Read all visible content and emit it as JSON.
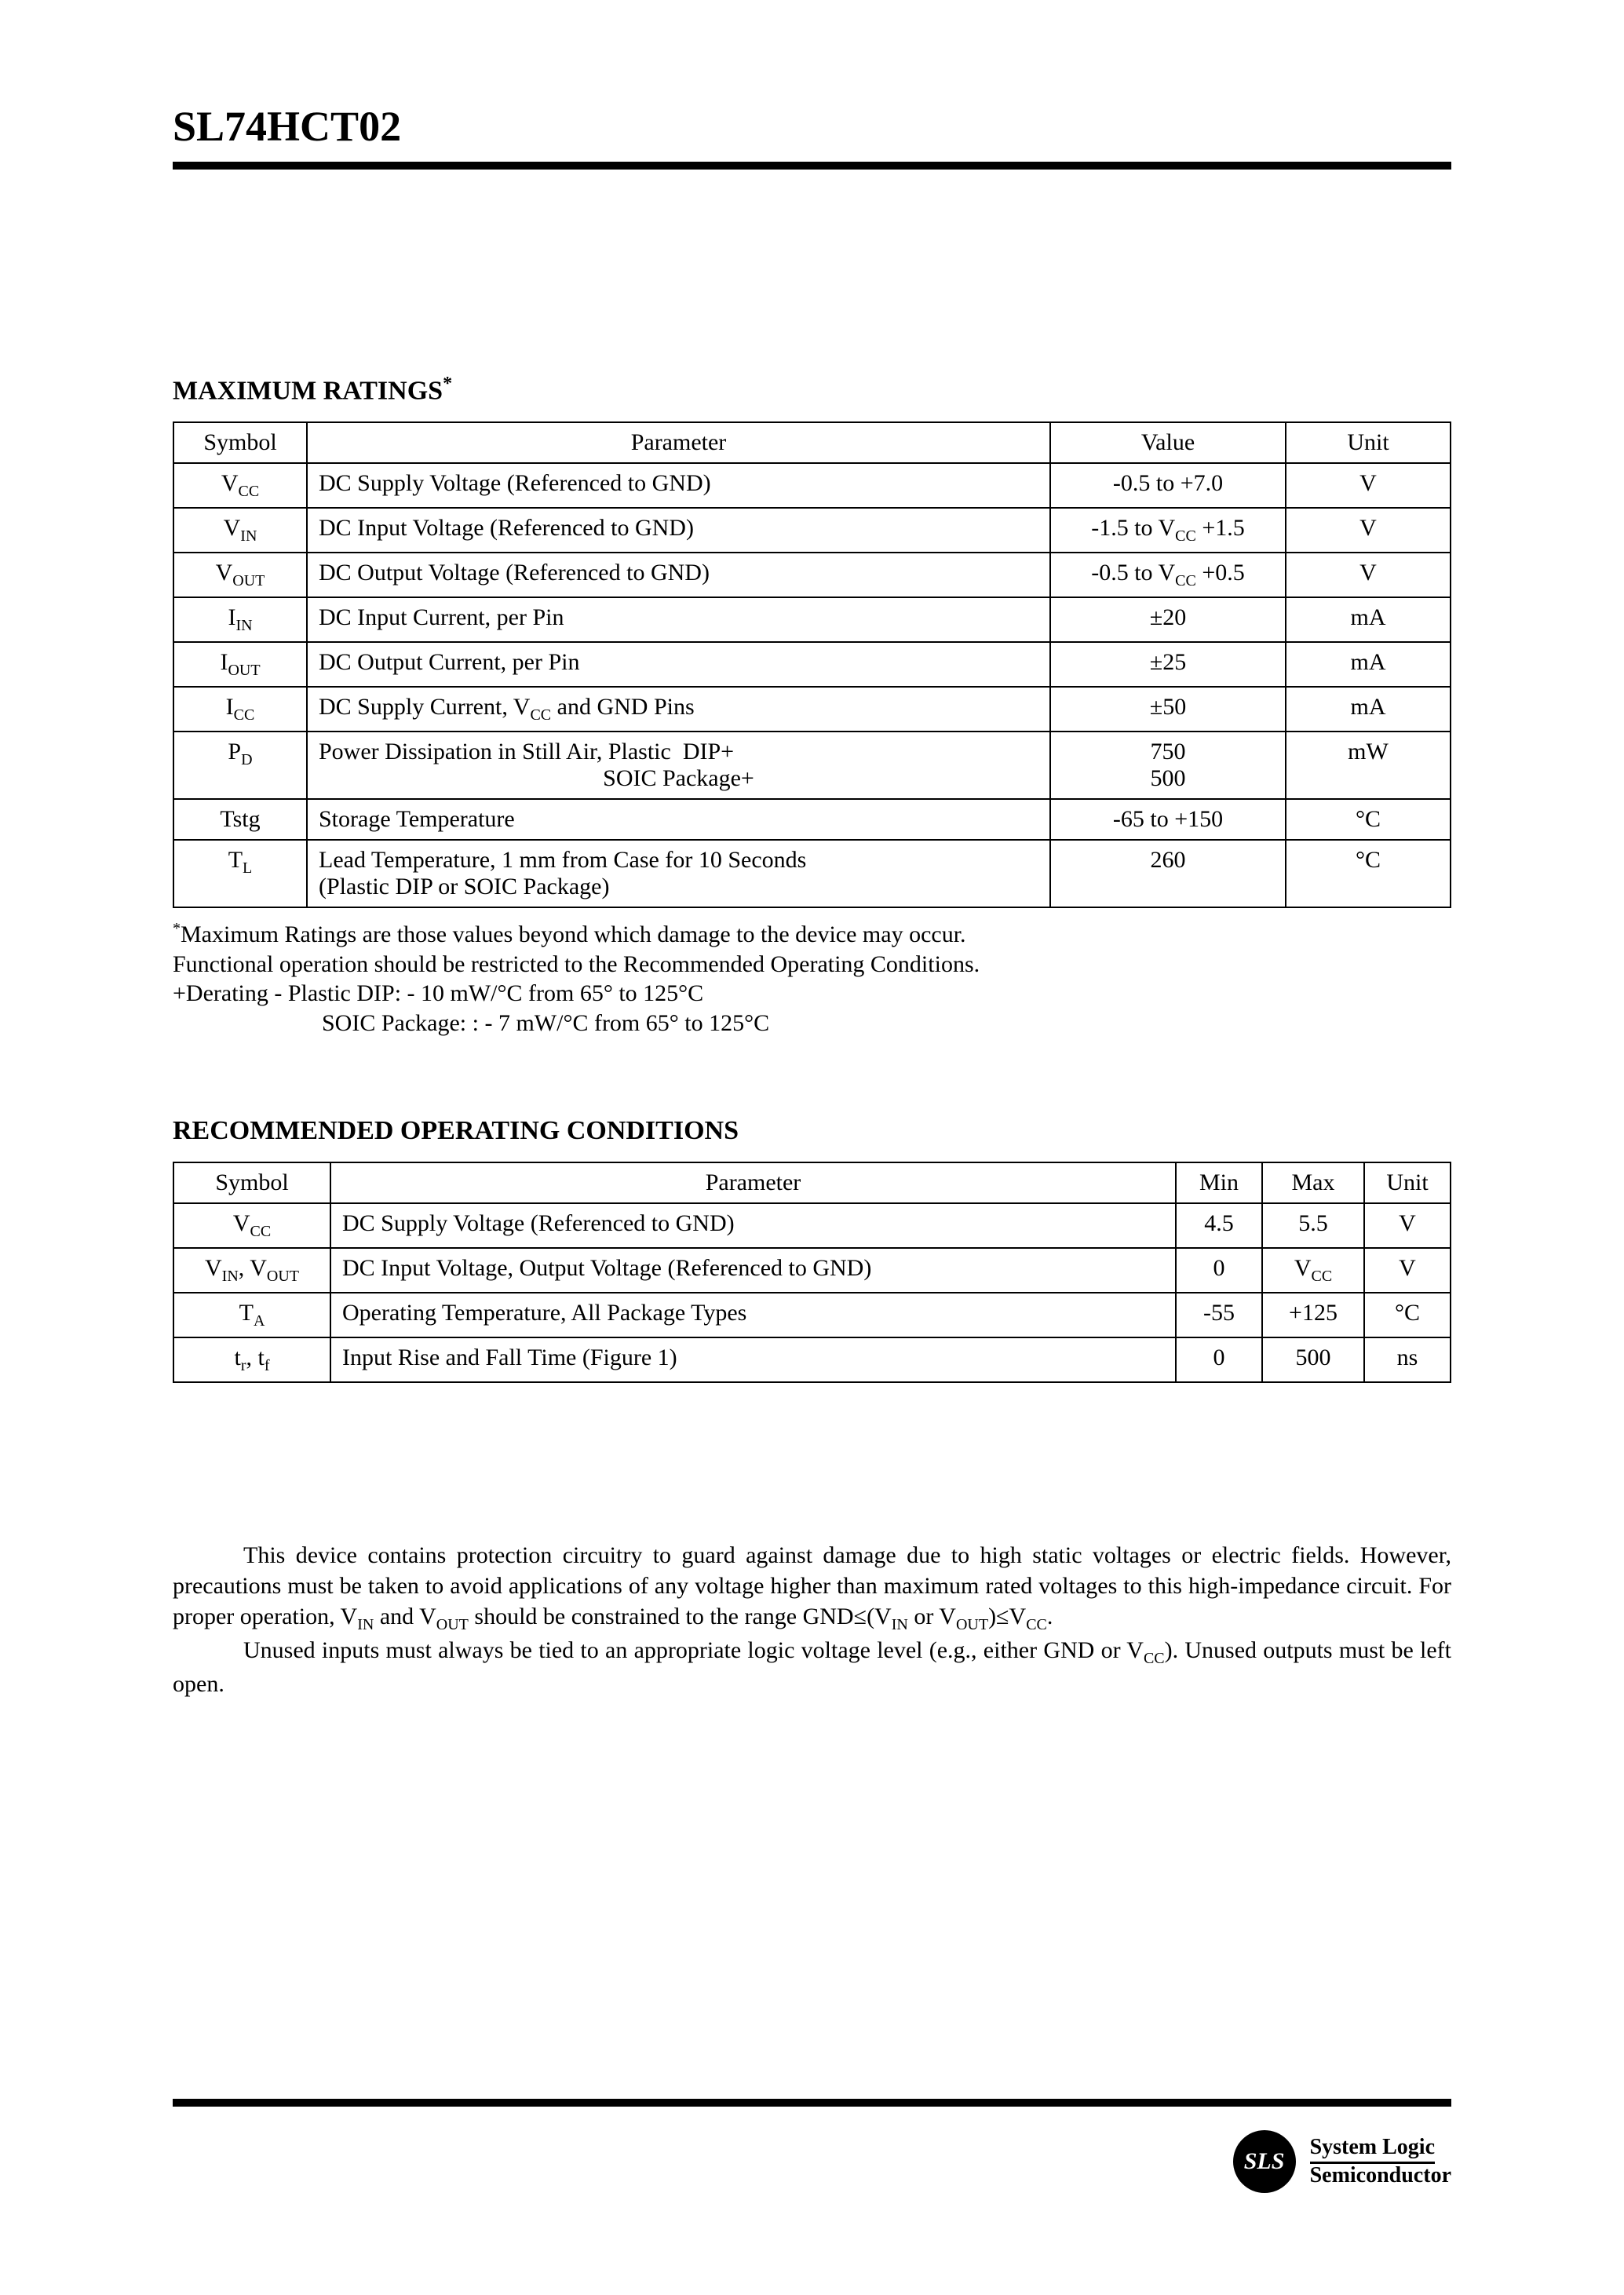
{
  "part_number": "SL74HCT02",
  "section1": {
    "title": "MAXIMUM RATINGS",
    "asterisk": "*",
    "headers": [
      "Symbol",
      "Parameter",
      "Value",
      "Unit"
    ],
    "rows": [
      {
        "symbol_html": "V<span class='sub'>CC</span>",
        "param": "DC Supply Voltage (Referenced to GND)",
        "value_html": "-0.5 to +7.0",
        "unit": "V"
      },
      {
        "symbol_html": "V<span class='sub'>IN</span>",
        "param": "DC Input Voltage (Referenced to GND)",
        "value_html": "-1.5 to V<span class='sub'>CC</span> +1.5",
        "unit": "V"
      },
      {
        "symbol_html": "V<span class='sub'>OUT</span>",
        "param": "DC Output Voltage (Referenced to GND)",
        "value_html": "-0.5 to V<span class='sub'>CC</span> +0.5",
        "unit": "V"
      },
      {
        "symbol_html": "I<span class='sub'>IN</span>",
        "param": "DC Input Current, per Pin",
        "value_html": "±20",
        "unit": "mA"
      },
      {
        "symbol_html": "I<span class='sub'>OUT</span>",
        "param": "DC Output Current, per Pin",
        "value_html": "±25",
        "unit": "mA"
      },
      {
        "symbol_html": "I<span class='sub'>CC</span>",
        "param_html": "DC Supply Current, V<span class='sub'>CC</span> and GND Pins",
        "value_html": "±50",
        "unit": "mA"
      },
      {
        "symbol_html": "P<span class='sub'>D</span>",
        "param_html": "Power Dissipation in Still Air, Plastic&nbsp;&nbsp;DIP+<br><span style='display:inline-block;width:100%;text-align:center;'>SOIC Package+</span>",
        "value_html": "750<br>500",
        "unit": "mW"
      },
      {
        "symbol_html": "Tstg",
        "param": "Storage Temperature",
        "value_html": "-65 to +150",
        "unit": "°C"
      },
      {
        "symbol_html": "T<span class='sub'>L</span>",
        "param_html": "Lead Temperature, 1 mm from Case for 10 Seconds<br>(Plastic DIP or SOIC Package)",
        "value_html": "260",
        "unit": "°C"
      }
    ],
    "notes": [
      "<span class='sup'>*</span>Maximum Ratings are those values beyond which damage to the device may occur.",
      "Functional operation should be restricted to the Recommended Operating Conditions.",
      "+Derating - Plastic DIP: - 10 mW/°C from 65° to 125°C",
      "SOIC Package: : - 7 mW/°C from 65° to 125°C"
    ]
  },
  "section2": {
    "title": "RECOMMENDED OPERATING CONDITIONS",
    "headers": [
      "Symbol",
      "Parameter",
      "Min",
      "Max",
      "Unit"
    ],
    "rows": [
      {
        "symbol_html": "V<span class='sub'>CC</span>",
        "param": "DC Supply Voltage (Referenced to GND)",
        "min": "4.5",
        "max": "5.5",
        "unit": "V"
      },
      {
        "symbol_html": "V<span class='sub'>IN</span>, V<span class='sub'>OUT</span>",
        "param": "DC Input Voltage, Output Voltage (Referenced to GND)",
        "min": "0",
        "max_html": "V<span class='sub'>CC</span>",
        "unit": "V"
      },
      {
        "symbol_html": "T<span class='sub'>A</span>",
        "param": "Operating Temperature, All Package Types",
        "min": "-55",
        "max": "+125",
        "unit": "°C"
      },
      {
        "symbol_html": "t<span class='sub'>r</span>, t<span class='sub'>f</span>",
        "param": "Input Rise and Fall Time (Figure 1)",
        "min": "0",
        "max": "500",
        "unit": "ns"
      }
    ]
  },
  "body": {
    "p1_html": "This device contains protection circuitry to guard against damage due to high static voltages or electric fields. However, precautions must be taken to avoid applications of any voltage higher than maximum rated voltages to this high-impedance circuit. For proper operation, V<span class='sub'>IN</span> and V<span class='sub'>OUT</span> should be constrained to the range GND≤(V<span class='sub'>IN</span> or V<span class='sub'>OUT</span>)≤V<span class='sub'>CC</span>.",
    "p2_html": "Unused inputs must always be tied to an appropriate logic voltage level (e.g., either GND or V<span class='sub'>CC</span>). Unused outputs must be left open."
  },
  "footer": {
    "badge": "SLS",
    "brand_line1": "System Logic",
    "brand_line2": "Semiconductor"
  }
}
